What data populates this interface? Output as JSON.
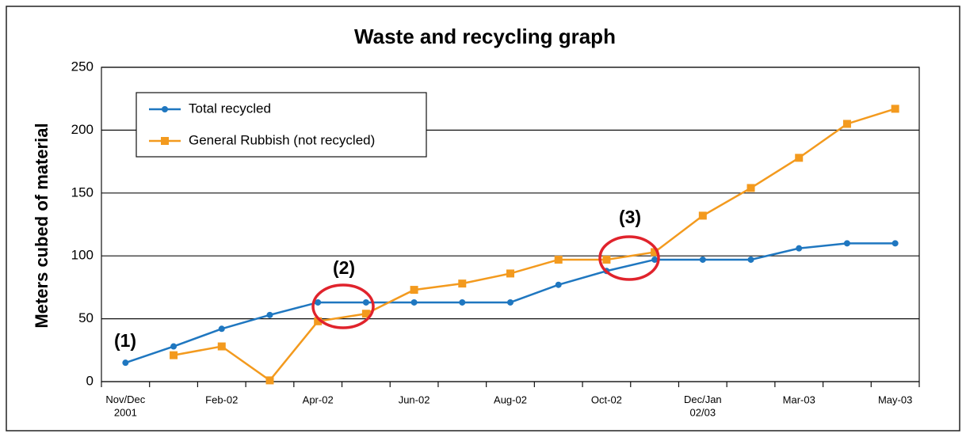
{
  "chart_data": {
    "type": "line",
    "title": "Waste and recycling graph",
    "y_label": "Meters cubed of material",
    "categories": [
      "Nov/Dec\n2001",
      null,
      "Feb-02",
      null,
      "Apr-02",
      null,
      "Jun-02",
      null,
      "Aug-02",
      null,
      "Oct-02",
      null,
      "Dec/Jan\n02/03",
      null,
      "Mar-03",
      null,
      "May-03"
    ],
    "series": [
      {
        "name": "Total recycled",
        "color": "#1f77c0",
        "marker": "circle",
        "values": [
          15,
          28,
          42,
          53,
          63,
          63,
          63,
          63,
          63,
          77,
          88,
          97,
          97,
          97,
          106,
          110,
          110
        ]
      },
      {
        "name": "General Rubbish (not recycled)",
        "color": "#f39a1e",
        "marker": "square",
        "values": [
          null,
          21,
          28,
          1,
          48,
          54,
          73,
          78,
          86,
          97,
          97,
          103,
          132,
          154,
          178,
          205,
          217
        ]
      }
    ],
    "annotations": [
      "(1)",
      "(2)",
      "(3)"
    ],
    "ylim": [
      0,
      250
    ],
    "yticks": [
      0,
      50,
      100,
      150,
      200,
      250
    ],
    "grid": true,
    "legend": "upper left"
  }
}
